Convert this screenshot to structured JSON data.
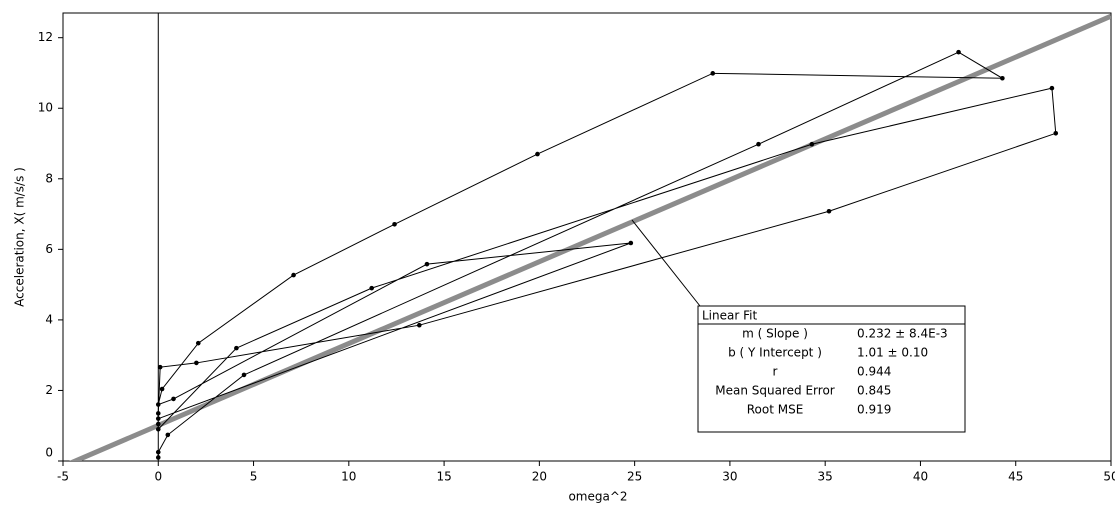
{
  "chart_data": {
    "type": "line",
    "xlabel": "omega^2",
    "ylabel": "Acceleration, X( m/s/s )",
    "xlim": [
      -5,
      50
    ],
    "ylim": [
      0,
      12.7
    ],
    "xticks": [
      -5,
      0,
      5,
      10,
      15,
      20,
      25,
      30,
      35,
      40,
      45,
      50
    ],
    "yticks": [
      0,
      2,
      4,
      6,
      8,
      10,
      12
    ],
    "series": [
      {
        "color": "#000000",
        "x": [
          0,
          0,
          0.5,
          4.5,
          31.5,
          42,
          44.3,
          29.1,
          19.9,
          12.4,
          7.1,
          2.1,
          0.2,
          0,
          0.8,
          14.1,
          24.8,
          0,
          0,
          0.1,
          2,
          13.7,
          35.2,
          47.1,
          46.9,
          34.3,
          11.2,
          4.1,
          0,
          0
        ],
        "values": [
          0.1,
          0.25,
          0.74,
          2.44,
          8.98,
          11.59,
          10.85,
          10.99,
          8.7,
          6.71,
          5.27,
          3.34,
          2.04,
          1.6,
          1.76,
          5.58,
          6.18,
          1.2,
          1.35,
          2.66,
          2.78,
          3.85,
          7.08,
          9.29,
          10.57,
          8.98,
          4.9,
          3.2,
          0.9,
          1.05
        ]
      }
    ],
    "fit_line": {
      "slope": 0.232,
      "intercept": 1.01,
      "color": "#8c8c8c"
    },
    "annotation": {
      "title": "Linear Fit",
      "rows": [
        [
          "m ( Slope )",
          "0.232 ± 8.4E-3"
        ],
        [
          "b ( Y Intercept )",
          "1.01 ±   0.10"
        ],
        [
          "r",
          "0.944"
        ],
        [
          "Mean Squared Error",
          "0.845"
        ],
        [
          "Root MSE",
          "0.919"
        ]
      ]
    }
  }
}
